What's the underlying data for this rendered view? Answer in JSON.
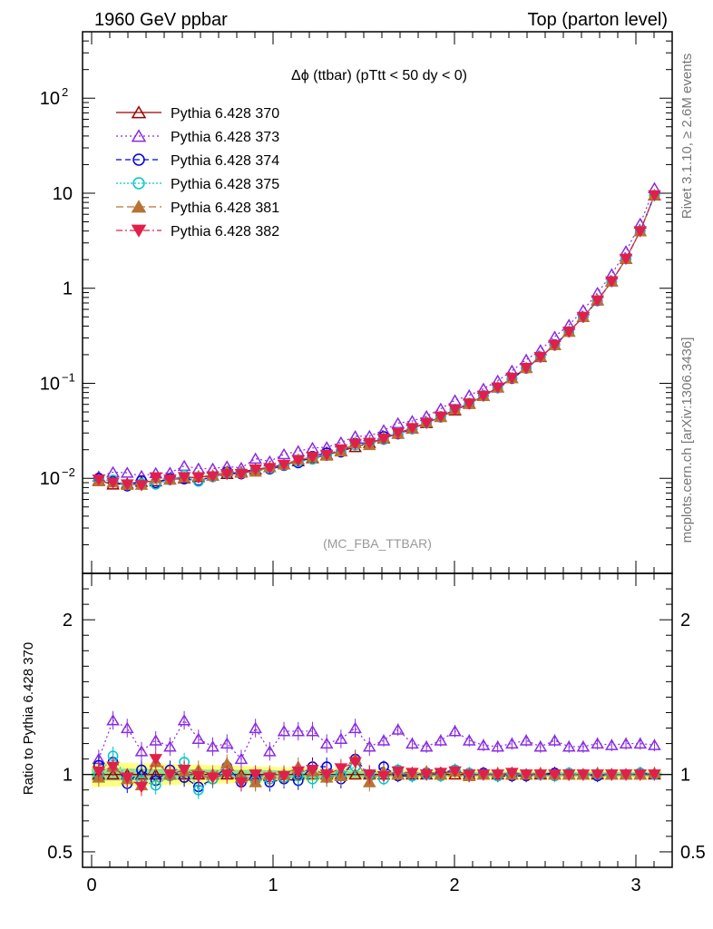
{
  "header": {
    "left": "1960 GeV ppbar",
    "right": "Top (parton level)"
  },
  "side": {
    "rivet": "Rivet 3.1.10, ≥ 2.6M events",
    "mcplots": "mcplots.cern.ch [arXiv:1306.3436]"
  },
  "chart_data": {
    "type": "line",
    "title": "Δϕ (ttbar) (pTtt < 50 dy < 0)",
    "analysis": "(MC_FBA_TTBAR)",
    "xlabel": "",
    "ylabel_ratio": "Ratio to Pythia 6.428 370",
    "xlim": [
      -0.05,
      3.2
    ],
    "ylim_main": [
      0.001,
      500
    ],
    "yscale_main": "log",
    "ylim_ratio": [
      0.4,
      2.3
    ],
    "grid": false,
    "legend_position": "top-left",
    "x_ticks": [
      "0",
      "1",
      "2",
      "3"
    ],
    "y_ticks_main": [
      "10^-2",
      "10^-1",
      "1",
      "10",
      "10^2"
    ],
    "y_ticks_ratio": [
      "0.5",
      "1",
      "2"
    ],
    "reference_band_color": "#ffff80",
    "reference_band_inner_color": "#8ee08e",
    "x": [
      0.0393,
      0.1178,
      0.1963,
      0.2749,
      0.3534,
      0.432,
      0.5105,
      0.589,
      0.6676,
      0.7461,
      0.8247,
      0.9032,
      0.9817,
      1.0603,
      1.1388,
      1.2174,
      1.2959,
      1.3744,
      1.453,
      1.5315,
      1.6101,
      1.6886,
      1.7671,
      1.8457,
      1.9242,
      2.0028,
      2.0813,
      2.1598,
      2.2384,
      2.3169,
      2.3955,
      2.474,
      2.5525,
      2.6311,
      2.7096,
      2.7882,
      2.8667,
      2.9452,
      3.0238,
      3.1023
    ],
    "reference_values": [
      0.0095,
      0.0086,
      0.0088,
      0.0092,
      0.0093,
      0.0097,
      0.01,
      0.0103,
      0.0107,
      0.0111,
      0.0117,
      0.0124,
      0.0131,
      0.014,
      0.0151,
      0.0163,
      0.0177,
      0.0194,
      0.0213,
      0.0236,
      0.0263,
      0.0295,
      0.0334,
      0.0382,
      0.0442,
      0.0517,
      0.0612,
      0.0737,
      0.0903,
      0.113,
      0.145,
      0.189,
      0.253,
      0.349,
      0.498,
      0.745,
      1.18,
      2.04,
      3.98,
      9.5
    ],
    "series": [
      {
        "name": "Pythia 6.428 370",
        "color": "#9b0000",
        "marker": "triangle-open",
        "dash": "",
        "ratio": [
          1.0,
          1.0,
          1.0,
          1.0,
          1.0,
          1.0,
          1.0,
          1.0,
          1.0,
          1.0,
          1.0,
          1.0,
          1.0,
          1.0,
          1.0,
          1.0,
          1.0,
          1.0,
          1.0,
          1.0,
          1.0,
          1.0,
          1.0,
          1.0,
          1.0,
          1.0,
          1.0,
          1.0,
          1.0,
          1.0,
          1.0,
          1.0,
          1.0,
          1.0,
          1.0,
          1.0,
          1.0,
          1.0,
          1.0,
          1.0
        ]
      },
      {
        "name": "Pythia 6.428 373",
        "color": "#8a2be2",
        "marker": "triangle-open",
        "dash": "2,3",
        "ratio": [
          1.1,
          1.35,
          1.3,
          1.15,
          1.22,
          1.18,
          1.35,
          1.23,
          1.18,
          1.2,
          1.1,
          1.3,
          1.15,
          1.28,
          1.28,
          1.28,
          1.2,
          1.23,
          1.3,
          1.18,
          1.22,
          1.29,
          1.2,
          1.18,
          1.22,
          1.28,
          1.22,
          1.19,
          1.18,
          1.2,
          1.22,
          1.18,
          1.22,
          1.18,
          1.18,
          1.2,
          1.19,
          1.2,
          1.2,
          1.19
        ]
      },
      {
        "name": "Pythia 6.428 374",
        "color": "#0000dd",
        "marker": "circle-open",
        "dash": "6,4",
        "ratio": [
          1.06,
          1.08,
          0.94,
          1.03,
          0.96,
          1.03,
          0.98,
          0.92,
          0.97,
          1.05,
          0.95,
          0.98,
          0.95,
          0.97,
          0.96,
          1.05,
          1.05,
          0.97,
          1.1,
          1.0,
          1.05,
          0.99,
          0.99,
          1.01,
          1.01,
          1.03,
          0.99,
          1.01,
          0.99,
          0.99,
          0.99,
          1.0,
          1.01,
          1.0,
          1.0,
          0.99,
          1.0,
          1.0,
          1.01,
          1.0
        ]
      },
      {
        "name": "Pythia 6.428 375",
        "color": "#00c8c8",
        "marker": "circle-open",
        "dash": "2,2",
        "ratio": [
          1.0,
          1.12,
          0.97,
          0.96,
          0.93,
          0.99,
          1.08,
          0.9,
          0.97,
          1.02,
          0.97,
          0.96,
          0.97,
          0.98,
          0.99,
          0.97,
          0.98,
          1.0,
          1.05,
          1.0,
          0.97,
          1.03,
          0.99,
          1.0,
          0.99,
          1.03,
          1.01,
          1.0,
          0.99,
          1.01,
          1.0,
          1.0,
          0.99,
          1.01,
          1.0,
          1.0,
          1.0,
          1.0,
          1.01,
          1.0
        ]
      },
      {
        "name": "Pythia 6.428 381",
        "color": "#b87333",
        "marker": "triangle-filled",
        "dash": "8,4",
        "ratio": [
          0.98,
          1.05,
          0.97,
          0.93,
          1.08,
          1.0,
          1.02,
          1.03,
          1.0,
          1.07,
          0.98,
          0.95,
          1.0,
          1.0,
          1.05,
          1.02,
          0.98,
          0.99,
          1.1,
          0.95,
          1.02,
          1.0,
          1.01,
          1.02,
          1.0,
          1.02,
          0.99,
          1.0,
          1.01,
          1.0,
          1.0,
          1.01,
          1.0,
          1.0,
          1.0,
          1.01,
          1.0,
          1.0,
          1.0,
          1.01
        ]
      },
      {
        "name": "Pythia 6.428 382",
        "color": "#e0204a",
        "marker": "triangle-down-filled",
        "dash": "7,3,2,3",
        "ratio": [
          1.02,
          1.05,
          0.98,
          0.92,
          1.1,
          1.0,
          1.03,
          0.99,
          0.98,
          1.0,
          0.95,
          1.0,
          0.98,
          0.99,
          1.02,
          1.03,
          1.0,
          1.04,
          1.08,
          1.0,
          0.99,
          1.02,
          1.01,
          1.0,
          1.01,
          1.02,
          1.0,
          1.0,
          1.0,
          1.01,
          1.0,
          1.0,
          1.0,
          1.0,
          1.0,
          1.0,
          1.0,
          1.0,
          1.0,
          1.0
        ]
      }
    ]
  }
}
